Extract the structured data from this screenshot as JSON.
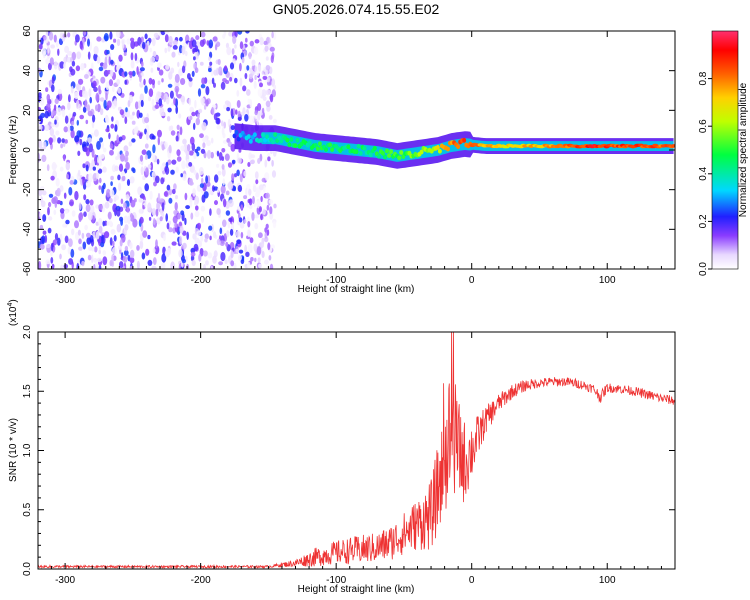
{
  "figure": {
    "title": "GN05.2026.074.15.55.E02"
  },
  "chart_data": [
    {
      "type": "heatmap",
      "xlabel": "Height of straight line (km)",
      "ylabel": "Frequency (Hz)",
      "xlim": [
        -320,
        150
      ],
      "ylim": [
        -60,
        60
      ],
      "x_ticks": [
        -300,
        -200,
        -100,
        0,
        100
      ],
      "x_tick_labels": [
        "-300",
        "-200",
        "-100",
        "0",
        "100"
      ],
      "y_ticks": [
        -60,
        -40,
        -20,
        0,
        20,
        40,
        60
      ],
      "y_tick_labels": [
        "-60",
        "-40",
        "-20",
        "0",
        "20",
        "40",
        "60"
      ],
      "colorbar": {
        "label": "Normalized spectral amplitude",
        "range": [
          0,
          1
        ],
        "ticks": [
          0.0,
          0.2,
          0.4,
          0.6,
          0.8
        ],
        "tick_labels": [
          "0.0",
          "0.2",
          "0.4",
          "0.6",
          "0.8"
        ]
      },
      "noise_region": {
        "x_range": [
          -320,
          -150
        ],
        "freq_range": [
          -60,
          60
        ],
        "amplitude_range": [
          0.02,
          0.25
        ]
      },
      "ridge": [
        {
          "x": -175,
          "freq": 7,
          "amp": 0.25
        },
        {
          "x": -160,
          "freq": 6,
          "amp": 0.35
        },
        {
          "x": -145,
          "freq": 6,
          "amp": 0.4
        },
        {
          "x": -130,
          "freq": 4,
          "amp": 0.45
        },
        {
          "x": -115,
          "freq": 2,
          "amp": 0.45
        },
        {
          "x": -100,
          "freq": 1,
          "amp": 0.45
        },
        {
          "x": -85,
          "freq": 0,
          "amp": 0.45
        },
        {
          "x": -70,
          "freq": -1,
          "amp": 0.45
        },
        {
          "x": -55,
          "freq": -3,
          "amp": 0.5
        },
        {
          "x": -45,
          "freq": -2,
          "amp": 0.55
        },
        {
          "x": -35,
          "freq": -1,
          "amp": 0.6
        },
        {
          "x": -25,
          "freq": 0,
          "amp": 0.65
        },
        {
          "x": -15,
          "freq": 2,
          "amp": 0.8
        },
        {
          "x": -5,
          "freq": 3,
          "amp": 0.85
        },
        {
          "x": 10,
          "freq": 2,
          "amp": 0.75
        },
        {
          "x": 30,
          "freq": 2,
          "amp": 0.7
        },
        {
          "x": 50,
          "freq": 2,
          "amp": 0.75
        },
        {
          "x": 75,
          "freq": 2,
          "amp": 0.85
        },
        {
          "x": 90,
          "freq": 2,
          "amp": 0.9
        },
        {
          "x": 110,
          "freq": 2,
          "amp": 0.85
        },
        {
          "x": 130,
          "freq": 2,
          "amp": 0.85
        },
        {
          "x": 150,
          "freq": 2,
          "amp": 0.8
        }
      ]
    },
    {
      "type": "line",
      "xlabel": "Height of straight line (km)",
      "ylabel": "SNR (10 * v/v)",
      "y_scale_label": "(x10",
      "y_scale_exponent": "4",
      "y_scale_close": ")",
      "xlim": [
        -320,
        150
      ],
      "ylim": [
        0,
        2.0
      ],
      "x_ticks": [
        -300,
        -200,
        -100,
        0,
        100
      ],
      "x_tick_labels": [
        "-300",
        "-200",
        "-100",
        "0",
        "100"
      ],
      "y_ticks": [
        0.0,
        0.5,
        1.0,
        1.5,
        2.0
      ],
      "y_tick_labels": [
        "0.0",
        "0.5",
        "1.0",
        "1.5",
        "2.0"
      ],
      "series": [
        {
          "name": "SNR",
          "color": "#ee3333",
          "x": [
            -320,
            -250,
            -200,
            -150,
            -130,
            -115,
            -100,
            -85,
            -70,
            -60,
            -50,
            -40,
            -30,
            -20,
            -15,
            -10,
            -5,
            0,
            10,
            20,
            30,
            40,
            50,
            60,
            70,
            80,
            90,
            95,
            100,
            110,
            120,
            130,
            140,
            150
          ],
          "y": [
            0.02,
            0.02,
            0.02,
            0.02,
            0.05,
            0.1,
            0.14,
            0.16,
            0.18,
            0.22,
            0.3,
            0.38,
            0.45,
            0.9,
            1.2,
            1.0,
            0.9,
            1.0,
            1.25,
            1.4,
            1.5,
            1.55,
            1.57,
            1.58,
            1.58,
            1.56,
            1.52,
            1.45,
            1.53,
            1.52,
            1.5,
            1.47,
            1.44,
            1.42
          ],
          "noise_amplitude": [
            0.01,
            0.01,
            0.01,
            0.01,
            0.03,
            0.08,
            0.1,
            0.12,
            0.13,
            0.15,
            0.18,
            0.22,
            0.3,
            0.45,
            0.6,
            0.45,
            0.35,
            0.25,
            0.12,
            0.08,
            0.06,
            0.05,
            0.04,
            0.04,
            0.04,
            0.04,
            0.04,
            0.05,
            0.04,
            0.04,
            0.04,
            0.04,
            0.04,
            0.04
          ]
        }
      ]
    }
  ]
}
